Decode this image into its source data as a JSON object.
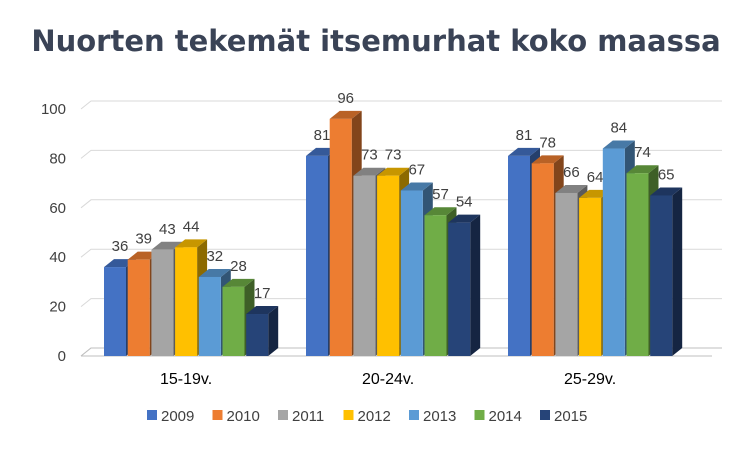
{
  "chart_data": {
    "type": "bar",
    "title": "Nuorten tekemät itsemurhat koko maassa",
    "xlabel": "",
    "ylabel": "",
    "categories": [
      "15-19v.",
      "20-24v.",
      "25-29v."
    ],
    "ylim": [
      0,
      100
    ],
    "yticks": [
      0,
      20,
      40,
      60,
      80,
      100
    ],
    "grid": true,
    "legend_position": "bottom",
    "style": "3d-clustered-column",
    "series": [
      {
        "name": "2009",
        "color": "#4472c4",
        "values": [
          36,
          81,
          81
        ]
      },
      {
        "name": "2010",
        "color": "#ed7d31",
        "values": [
          39,
          96,
          78
        ]
      },
      {
        "name": "2011",
        "color": "#a5a5a5",
        "values": [
          43,
          73,
          66
        ]
      },
      {
        "name": "2012",
        "color": "#ffc000",
        "values": [
          44,
          73,
          64
        ]
      },
      {
        "name": "2013",
        "color": "#5b9bd5",
        "values": [
          32,
          67,
          84
        ]
      },
      {
        "name": "2014",
        "color": "#70ad47",
        "values": [
          28,
          57,
          74
        ]
      },
      {
        "name": "2015",
        "color": "#264478",
        "values": [
          17,
          54,
          65
        ]
      }
    ]
  }
}
